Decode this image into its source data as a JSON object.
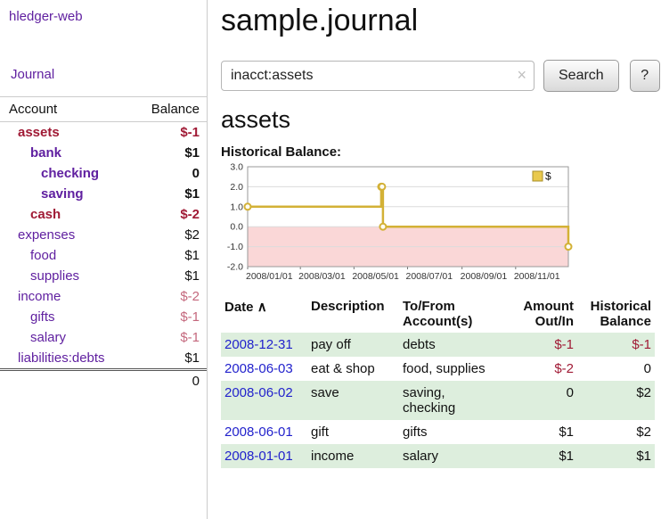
{
  "colors": {
    "brand_purple": "#6020a0",
    "negative_dark_red": "#a01a35",
    "negative_soft_red": "#c4687d",
    "link_blue": "#2222cc",
    "row_green": "#ddeedd",
    "chart_line_gold": "#d3b136",
    "chart_negative_pink": "#fad7d7"
  },
  "app": {
    "title": "hledger-web",
    "nav_journal": "Journal"
  },
  "sidebar": {
    "col_account": "Account",
    "col_balance": "Balance",
    "accounts": [
      {
        "name": "assets",
        "balance": "$-1"
      },
      {
        "name": "bank",
        "balance": "$1"
      },
      {
        "name": "checking",
        "balance": "0"
      },
      {
        "name": "saving",
        "balance": "$1"
      },
      {
        "name": "cash",
        "balance": "$-2"
      },
      {
        "name": "expenses",
        "balance": "$2"
      },
      {
        "name": "food",
        "balance": "$1"
      },
      {
        "name": "supplies",
        "balance": "$1"
      },
      {
        "name": "income",
        "balance": "$-2"
      },
      {
        "name": "gifts",
        "balance": "$-1"
      },
      {
        "name": "salary",
        "balance": "$-1"
      },
      {
        "name": "liabilities:debts",
        "balance": "$1"
      }
    ],
    "total": "0"
  },
  "main": {
    "title": "sample.journal",
    "search": {
      "value": "inacct:assets",
      "clear_icon": "×",
      "button_label": "Search",
      "help_label": "?"
    },
    "account_heading": "assets",
    "chart_title": "Historical Balance:"
  },
  "chart_data": {
    "type": "line",
    "step": true,
    "title": "Historical Balance",
    "legend": [
      {
        "label": "$",
        "color": "#e9c94d"
      }
    ],
    "ylim": [
      -2,
      3
    ],
    "yticks": [
      3,
      2,
      1,
      0,
      -1,
      -2
    ],
    "xlim": [
      "2008-01-01",
      "2008-12-31"
    ],
    "xticks": [
      {
        "date": "2008-01-01",
        "label": "2008/01/01"
      },
      {
        "date": "2008-03-01",
        "label": "2008/03/01"
      },
      {
        "date": "2008-05-01",
        "label": "2008/05/01"
      },
      {
        "date": "2008-07-01",
        "label": "2008/07/01"
      },
      {
        "date": "2008-09-01",
        "label": "2008/09/01"
      },
      {
        "date": "2008-11-01",
        "label": "2008/11/01"
      }
    ],
    "points": [
      {
        "date": "2008-01-01",
        "value": 1
      },
      {
        "date": "2008-06-01",
        "value": 2
      },
      {
        "date": "2008-06-02",
        "value": 2
      },
      {
        "date": "2008-06-03",
        "value": 0
      },
      {
        "date": "2008-12-31",
        "value": -1
      }
    ],
    "grid": true,
    "legend_position": "top-right",
    "colors": {
      "line": "#d3b136",
      "negative_area": "#fad7d7"
    }
  },
  "register": {
    "sort_indicator": "∧",
    "headers": {
      "date": "Date",
      "description": "Description",
      "account": "To/From\nAccount(s)",
      "amount": "Amount\nOut/In",
      "balance": "Historical\nBalance"
    },
    "rows": [
      {
        "date": "2008-12-31",
        "description": "pay off",
        "account": "debts",
        "amount": "$-1",
        "balance": "$-1"
      },
      {
        "date": "2008-06-03",
        "description": "eat & shop",
        "account": "food, supplies",
        "amount": "$-2",
        "balance": "0"
      },
      {
        "date": "2008-06-02",
        "description": "save",
        "account": "saving,\nchecking",
        "amount": "0",
        "balance": "$2"
      },
      {
        "date": "2008-06-01",
        "description": "gift",
        "account": "gifts",
        "amount": "$1",
        "balance": "$2"
      },
      {
        "date": "2008-01-01",
        "description": "income",
        "account": "salary",
        "amount": "$1",
        "balance": "$1"
      }
    ]
  }
}
